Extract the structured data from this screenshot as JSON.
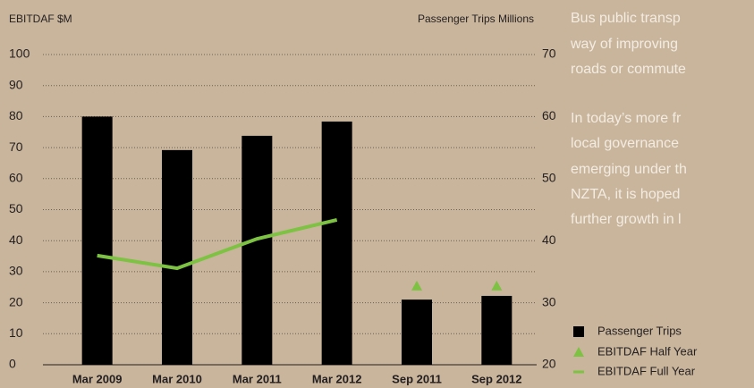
{
  "chart_data": {
    "type": "bar",
    "ylabel": "EBITDAF $M",
    "y2label": "Passenger Trips Millions",
    "categories": [
      "Mar 2009",
      "Mar 2010",
      "Mar 2011",
      "Mar 2012",
      "Sep 2011",
      "Sep 2012"
    ],
    "series": [
      {
        "name": "Passenger Trips",
        "type": "bar",
        "axis": "y2",
        "color": "#000000",
        "values": [
          60,
          54.6,
          56.9,
          59.2,
          30.5,
          31.1
        ]
      },
      {
        "name": "EBITDAF Half Year",
        "type": "scatter",
        "color": "#7dc242",
        "values": [
          null,
          null,
          null,
          null,
          25.4,
          25.4
        ]
      },
      {
        "name": "EBITDAF Full Year",
        "type": "line",
        "color": "#7dc242",
        "values": [
          35.2,
          31.1,
          40.6,
          46.7,
          null,
          null
        ]
      }
    ],
    "ylim": [
      0,
      100
    ],
    "yticks": [
      0,
      10,
      20,
      30,
      40,
      50,
      60,
      70,
      80,
      90,
      100
    ],
    "y2lim": [
      20,
      70
    ],
    "y2ticks": [
      20,
      30,
      40,
      50,
      60,
      70
    ],
    "grid": true,
    "side_text": [
      "Bus public transp",
      "way of improving",
      "roads or commute",
      "In today’s more fr",
      "local governance",
      "emerging under th",
      "NZTA, it is hoped",
      "further growth in l"
    ]
  }
}
